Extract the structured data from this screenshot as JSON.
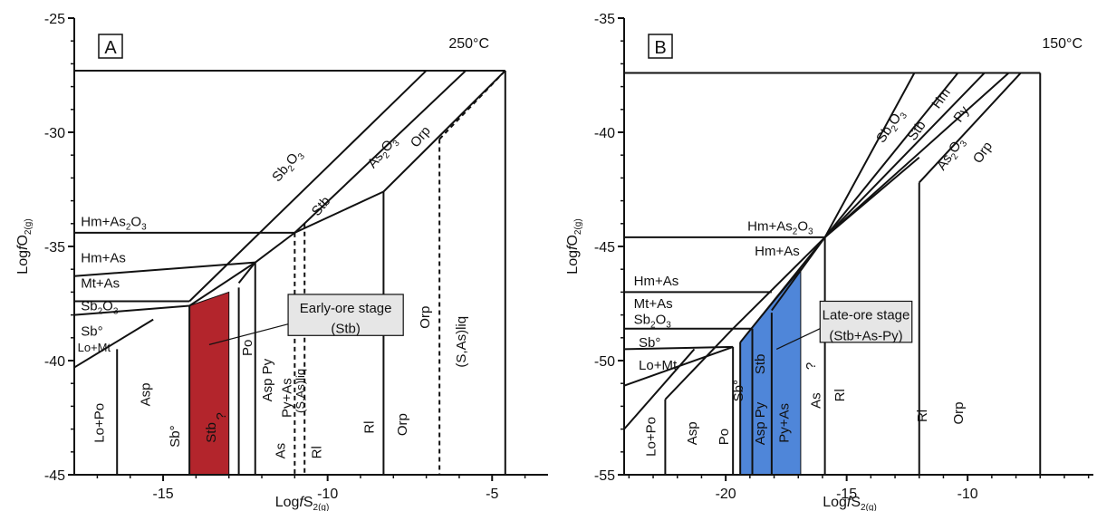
{
  "chart_data": [
    {
      "type": "phase-diagram",
      "panel_label": "A",
      "temperature": "250°C",
      "xlabel": "LogfS2(g)",
      "ylabel": "LogfO2(g)",
      "xlim": [
        -17.7,
        -3.3
      ],
      "ylim": [
        -45,
        -25
      ],
      "xticks": [
        -15,
        -10,
        -5
      ],
      "yticks": [
        -25,
        -30,
        -35,
        -40,
        -45
      ],
      "highlight": {
        "color": "#b3252c",
        "label_line1": "Early-ore stage",
        "label_line2": "(Stb)"
      },
      "field_labels": [
        "Hm+As2O3",
        "Hm+As",
        "Mt+As",
        "Sb2O3",
        "Sb°",
        "Lo+Mt",
        "Sb2O3",
        "Stb",
        "As2O3",
        "Orp",
        "Lo+Po",
        "Asp",
        "Sb°",
        "Stb",
        "Po",
        "Asp Py",
        "Py+As",
        "As",
        "(S,As)liq",
        "Rl",
        "Rl",
        "Orp",
        "Orp",
        "(S,As)liq",
        "?"
      ]
    },
    {
      "type": "phase-diagram",
      "panel_label": "B",
      "temperature": "150°C",
      "xlabel": "LogfS2(g)",
      "ylabel": "LogfO2(g)",
      "xlim": [
        -24.2,
        -4.8
      ],
      "ylim": [
        -55,
        -35
      ],
      "xticks": [
        -20,
        -15,
        -10
      ],
      "yticks": [
        -35,
        -40,
        -45,
        -50,
        -55
      ],
      "highlight": {
        "color": "#4f86d9",
        "label_line1": "Late-ore stage",
        "label_line2": "(Stb+As-Py)"
      },
      "field_labels": [
        "Sb2O3",
        "Stb",
        "Hm",
        "Py",
        "As2O3",
        "Orp",
        "Hm+As2O3",
        "Hm+As",
        "Hm+As",
        "Mt+As",
        "Sb2O3",
        "Sb°",
        "Lo+Mt",
        "Lo+Po",
        "Asp",
        "Po",
        "Sb°",
        "Stb",
        "Asp Py",
        "Py+As",
        "As",
        "Rl",
        "Rl",
        "Orp",
        "?"
      ]
    }
  ]
}
